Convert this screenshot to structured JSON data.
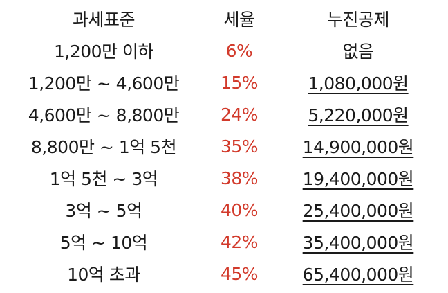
{
  "headers": {
    "bracket": "과세표준",
    "rate": "세율",
    "deduction": "누진공제"
  },
  "rows": [
    {
      "bracket": "1,200만 이하",
      "rate": "6%",
      "deduction": "없음",
      "underlined": false
    },
    {
      "bracket": "1,200만 ~ 4,600만",
      "rate": "15%",
      "deduction": "1,080,000원",
      "underlined": true
    },
    {
      "bracket": "4,600만 ~ 8,800만",
      "rate": "24%",
      "deduction": "5,220,000원",
      "underlined": true
    },
    {
      "bracket": "8,800만 ~ 1억 5천",
      "rate": "35%",
      "deduction": "14,900,000원",
      "underlined": true
    },
    {
      "bracket": "1억 5천 ~ 3억",
      "rate": "38%",
      "deduction": "19,400,000원",
      "underlined": true
    },
    {
      "bracket": "3억 ~ 5억",
      "rate": "40%",
      "deduction": "25,400,000원",
      "underlined": true
    },
    {
      "bracket": "5억 ~ 10억",
      "rate": "42%",
      "deduction": "35,400,000원",
      "underlined": true
    },
    {
      "bracket": "10억 초과",
      "rate": "45%",
      "deduction": "65,400,000원",
      "underlined": true
    }
  ],
  "colors": {
    "rate_text": "#d23a2b",
    "text": "#1a1a1a",
    "background": "#ffffff"
  }
}
